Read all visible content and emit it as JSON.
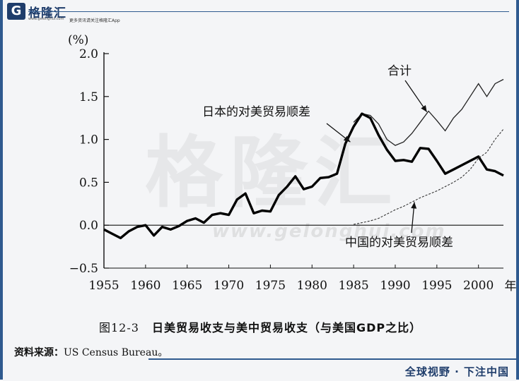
{
  "header": {
    "logo_glyph": "G",
    "logo_name": "格隆汇",
    "logo_url": "www.gelonghui.com",
    "tagline": "更多资讯请关注格隆汇App"
  },
  "watermark": {
    "text": "格隆汇",
    "url": "www.gelonghui.com"
  },
  "caption": {
    "number": "图12-3",
    "title": "日美贸易收支与美中贸易收支（与美国GDP之比）"
  },
  "source": {
    "label": "资料来源：",
    "text": "US Census Bureau。"
  },
  "footer": {
    "text": "全球视野 · 下注中国"
  },
  "colors": {
    "brand": "#1f3d6b",
    "frame": "#2f5a8f",
    "ink": "#111111"
  },
  "chart_data": {
    "type": "line",
    "ylabel": "(%)",
    "x_suffix_label": "年",
    "xlim": [
      1955,
      2003
    ],
    "ylim": [
      -0.5,
      2.0
    ],
    "x_ticks": [
      "1955",
      "1960",
      "1965",
      "1970",
      "1975",
      "1980",
      "1985",
      "1990",
      "1995",
      "2000"
    ],
    "y_ticks": [
      "2.0",
      "1.5",
      "1.0",
      "0.5",
      "0.0",
      "−0.5"
    ],
    "zero_line": true,
    "series": [
      {
        "name": "合计",
        "style": "thin",
        "x": [
          1985,
          1986,
          1987,
          1988,
          1989,
          1990,
          1991,
          1992,
          1993,
          1994,
          1995,
          1996,
          1997,
          1998,
          1999,
          2000,
          2001,
          2002,
          2003
        ],
        "y": [
          1.2,
          1.3,
          1.28,
          1.18,
          1.0,
          0.93,
          0.97,
          1.07,
          1.2,
          1.33,
          1.22,
          1.1,
          1.25,
          1.35,
          1.5,
          1.65,
          1.5,
          1.65,
          1.7
        ]
      },
      {
        "name": "日本的对美贸易顺差",
        "style": "thick",
        "x": [
          1955,
          1956,
          1957,
          1958,
          1959,
          1960,
          1961,
          1962,
          1963,
          1964,
          1965,
          1966,
          1967,
          1968,
          1969,
          1970,
          1971,
          1972,
          1973,
          1974,
          1975,
          1976,
          1977,
          1978,
          1979,
          1980,
          1981,
          1982,
          1983,
          1984,
          1985,
          1986,
          1987,
          1988,
          1989,
          1990,
          1991,
          1992,
          1993,
          1994,
          1995,
          1996,
          1997,
          1998,
          1999,
          2000,
          2001,
          2002,
          2003
        ],
        "y": [
          -0.05,
          -0.1,
          -0.15,
          -0.07,
          -0.02,
          0.0,
          -0.12,
          -0.02,
          -0.05,
          -0.01,
          0.05,
          0.08,
          0.03,
          0.12,
          0.14,
          0.12,
          0.3,
          0.37,
          0.14,
          0.17,
          0.16,
          0.35,
          0.45,
          0.57,
          0.42,
          0.45,
          0.55,
          0.56,
          0.6,
          0.95,
          1.15,
          1.3,
          1.25,
          1.05,
          0.88,
          0.75,
          0.76,
          0.74,
          0.9,
          0.89,
          0.75,
          0.6,
          0.65,
          0.7,
          0.75,
          0.8,
          0.65,
          0.63,
          0.58
        ]
      },
      {
        "name": "中国的对美贸易顺差",
        "style": "dashed",
        "x": [
          1985,
          1986,
          1987,
          1988,
          1989,
          1990,
          1991,
          1992,
          1993,
          1994,
          1995,
          1996,
          1997,
          1998,
          1999,
          2000,
          2001,
          2002,
          2003
        ],
        "y": [
          0.01,
          0.03,
          0.05,
          0.08,
          0.13,
          0.18,
          0.22,
          0.27,
          0.32,
          0.36,
          0.4,
          0.45,
          0.5,
          0.56,
          0.65,
          0.78,
          0.85,
          1.0,
          1.12
        ]
      }
    ],
    "annotations": [
      {
        "text": "合计",
        "series": 0
      },
      {
        "text": "日本的对美贸易顺差",
        "series": 1
      },
      {
        "text": "中国的对美贸易顺差",
        "series": 2
      }
    ]
  }
}
